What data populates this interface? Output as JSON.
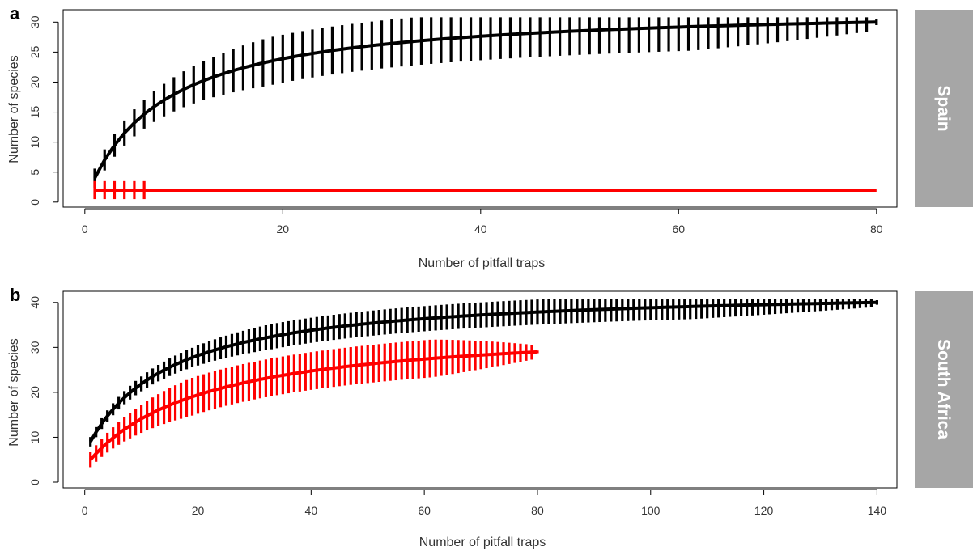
{
  "chart_data": [
    {
      "type": "line",
      "panel_label": "a",
      "strip_label": "Spain",
      "xlabel": "Number of pitfall traps",
      "ylabel": "Number of species",
      "xlim": [
        0,
        80
      ],
      "ylim": [
        0,
        30
      ],
      "xticks": [
        0,
        20,
        40,
        60,
        80
      ],
      "yticks": [
        0,
        5,
        10,
        15,
        20,
        25,
        30
      ],
      "grid": false,
      "error_bars": true,
      "series": [
        {
          "color": "#000000",
          "n_max": 80,
          "S_total": 30,
          "k": 7.5,
          "y1": 4,
          "bar_width": 4.0,
          "bar_min": 0.5
        },
        {
          "color": "#ff0000",
          "n_max": 80,
          "S_total": 2,
          "constant": true,
          "bars_until": 6,
          "bar_width": 1.5,
          "bar_min": 0
        }
      ]
    },
    {
      "type": "line",
      "panel_label": "b",
      "strip_label": "South Africa",
      "xlabel": "Number of pitfall traps",
      "ylabel": "Number of species",
      "xlim": [
        0,
        140
      ],
      "ylim": [
        0,
        40
      ],
      "xticks": [
        0,
        20,
        40,
        60,
        80,
        100,
        120,
        140
      ],
      "yticks": [
        0,
        10,
        20,
        30,
        40
      ],
      "grid": false,
      "error_bars": true,
      "series": [
        {
          "color": "#000000",
          "n_max": 140,
          "S_total": 40,
          "k": 14,
          "y1": 9,
          "bar_width": 2.8,
          "bar_min": 0.5
        },
        {
          "color": "#ff0000",
          "n_max": 80,
          "S_total": 29,
          "k": 20,
          "y1": 5,
          "bar_width": 4.2,
          "bar_min": 0.3
        }
      ]
    }
  ]
}
